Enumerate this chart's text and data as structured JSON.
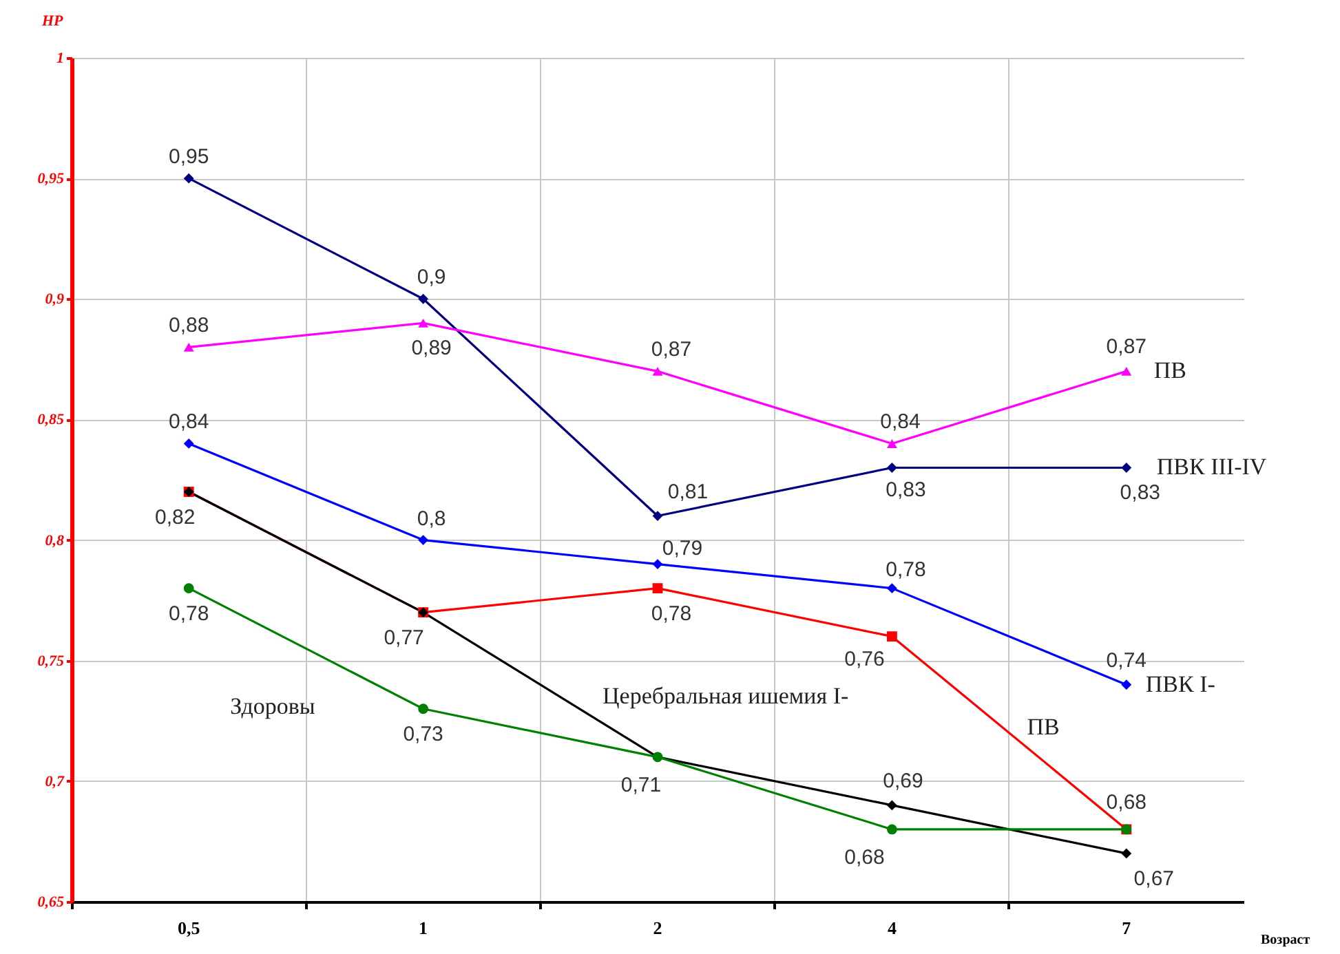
{
  "chart_data": {
    "type": "line",
    "xlabel": "Возраст",
    "ylabel": "НР",
    "categories": [
      "0,5",
      "1",
      "2",
      "4",
      "7"
    ],
    "ylim": [
      0.65,
      1
    ],
    "yticks": [
      {
        "value": 0.65,
        "label": "0,65"
      },
      {
        "value": 0.7,
        "label": "0,7"
      },
      {
        "value": 0.75,
        "label": "0,75"
      },
      {
        "value": 0.8,
        "label": "0,8"
      },
      {
        "value": 0.85,
        "label": "0,85"
      },
      {
        "value": 0.9,
        "label": "0,9"
      },
      {
        "value": 0.95,
        "label": "0,95"
      },
      1
    ],
    "grid": true,
    "series": [
      {
        "name": "ПВК III-IV",
        "color": "#000080",
        "marker": "diamond",
        "values": [
          0.95,
          0.9,
          0.81,
          0.83,
          0.83
        ],
        "value_labels": [
          "0,95",
          "0,9",
          "0,81",
          "0,83",
          "0,83"
        ]
      },
      {
        "name": "ПВ",
        "color": "#ff00ff",
        "marker": "triangle",
        "values": [
          0.88,
          0.89,
          0.87,
          0.84,
          0.87
        ],
        "value_labels": [
          "0,88",
          "0,89",
          "0,87",
          "0,84",
          "0,87"
        ]
      },
      {
        "name": "ПВК I-",
        "color": "#0000ff",
        "marker": "diamond",
        "values": [
          0.84,
          0.8,
          0.79,
          0.78,
          0.74
        ],
        "value_labels": [
          "0,84",
          "0,8",
          "0,79",
          "0,78",
          "0,74"
        ]
      },
      {
        "name": "ПВ",
        "color": "#ff0000",
        "marker": "square",
        "values": [
          0.82,
          0.77,
          0.78,
          0.76,
          0.68
        ],
        "value_labels": [
          null,
          null,
          "0,78",
          "0,76",
          "0,68"
        ]
      },
      {
        "name": "Церебральная ишемия I-",
        "color": "#000000",
        "marker": "diamond",
        "values": [
          0.82,
          0.77,
          0.71,
          0.69,
          0.67
        ],
        "value_labels": [
          "0,82",
          "0,77",
          "0,71",
          "0,69",
          "0,67"
        ]
      },
      {
        "name": "Здоровы",
        "color": "#008000",
        "marker": "circle",
        "values": [
          0.78,
          0.73,
          0.71,
          0.68,
          0.68
        ],
        "value_labels": [
          "0,78",
          "0,73",
          null,
          "0,68",
          null
        ]
      }
    ]
  }
}
